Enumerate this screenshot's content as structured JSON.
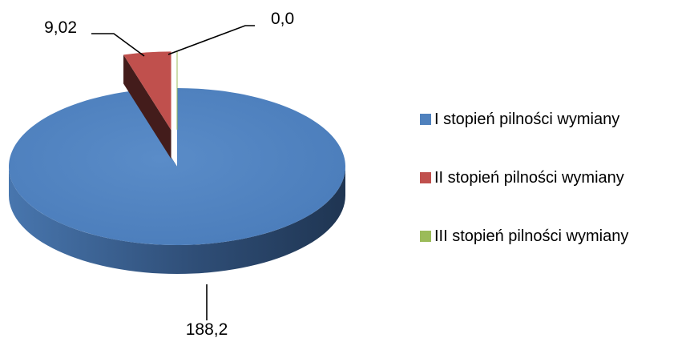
{
  "chart_data": {
    "type": "pie",
    "style": "3d-exploded",
    "start_angle_deg": 0,
    "direction": "clockwise",
    "slices": [
      {
        "label": "I stopień pilności wymiany",
        "value": 188.2,
        "display": "188,2",
        "color": "#4F81BD"
      },
      {
        "label": "II stopień pilności wymiany",
        "value": 9.02,
        "display": "9,02",
        "color": "#C0504D"
      },
      {
        "label": "III stopień pilności wymiany",
        "value": 0.0,
        "display": "0,0",
        "color": "#9BBB59"
      }
    ],
    "legend_position": "right",
    "title": ""
  }
}
